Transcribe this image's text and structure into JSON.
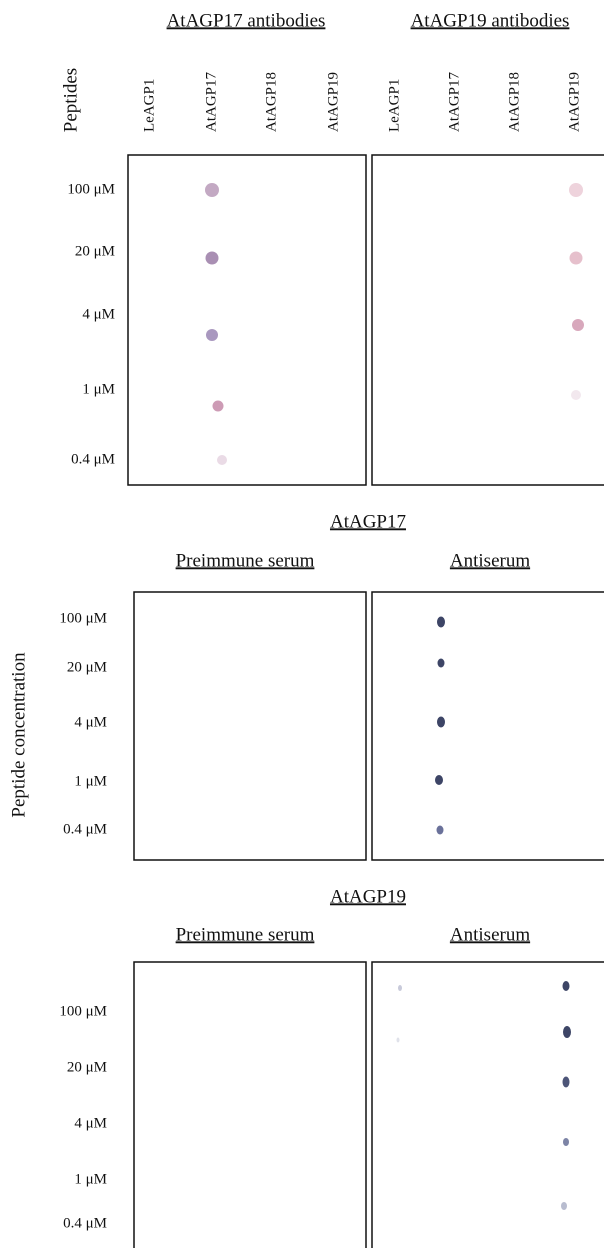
{
  "panel_a": {
    "groups": [
      "AtAGP17 antibodies",
      "AtAGP19 antibodies"
    ],
    "row_header": "Peptides",
    "columns": [
      "LeAGP1",
      "AtAGP17",
      "AtAGP18",
      "AtAGP19",
      "LeAGP1",
      "AtAGP17",
      "AtAGP18",
      "AtAGP19"
    ],
    "rows": [
      "100 μM",
      "20 μM",
      "4 μM",
      "1 μM",
      "0.4 μM"
    ]
  },
  "panel_b": {
    "title": "AtAGP17",
    "groups": [
      "Preimmune serum",
      "Antiserum"
    ],
    "rows": [
      "100 μM",
      "20 μM",
      "4 μM",
      "1 μM",
      "0.4 μM"
    ]
  },
  "panel_c": {
    "title": "AtAGP19",
    "groups": [
      "Preimmune serum",
      "Antiserum"
    ],
    "rows": [
      "100 μM",
      "20 μM",
      "4 μM",
      "1 μM",
      "0.4 μM"
    ]
  },
  "y_label": "Peptide concentration"
}
